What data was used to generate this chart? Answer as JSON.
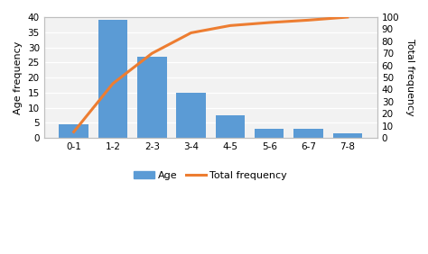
{
  "categories": [
    "0-1",
    "1-2",
    "2-3",
    "3-4",
    "4-5",
    "5-6",
    "6-7",
    "7-8"
  ],
  "bar_values": [
    4.5,
    39,
    27,
    15,
    7.5,
    3,
    3,
    1.5
  ],
  "bar_color": "#5B9BD5",
  "line_values": [
    5,
    45,
    70,
    87,
    93,
    95.5,
    97.5,
    100
  ],
  "line_color": "#ED7D31",
  "ylabel_left": "Age frequency",
  "ylabel_right": "Total frequency",
  "ylim_left": [
    0,
    40
  ],
  "ylim_right": [
    0,
    100
  ],
  "yticks_left": [
    0,
    5,
    10,
    15,
    20,
    25,
    30,
    35,
    40
  ],
  "yticks_right": [
    0,
    10,
    20,
    30,
    40,
    50,
    60,
    70,
    80,
    90,
    100
  ],
  "legend_age": "Age",
  "legend_line": "Total frequency",
  "bg_color": "#FFFFFF",
  "plot_bg_color": "#F2F2F2",
  "grid_color": "#FFFFFF",
  "spine_color": "#BFBFBF",
  "line_width": 2.2,
  "bar_width": 0.75,
  "ylabel_fontsize": 8,
  "tick_fontsize": 7.5,
  "legend_fontsize": 8
}
